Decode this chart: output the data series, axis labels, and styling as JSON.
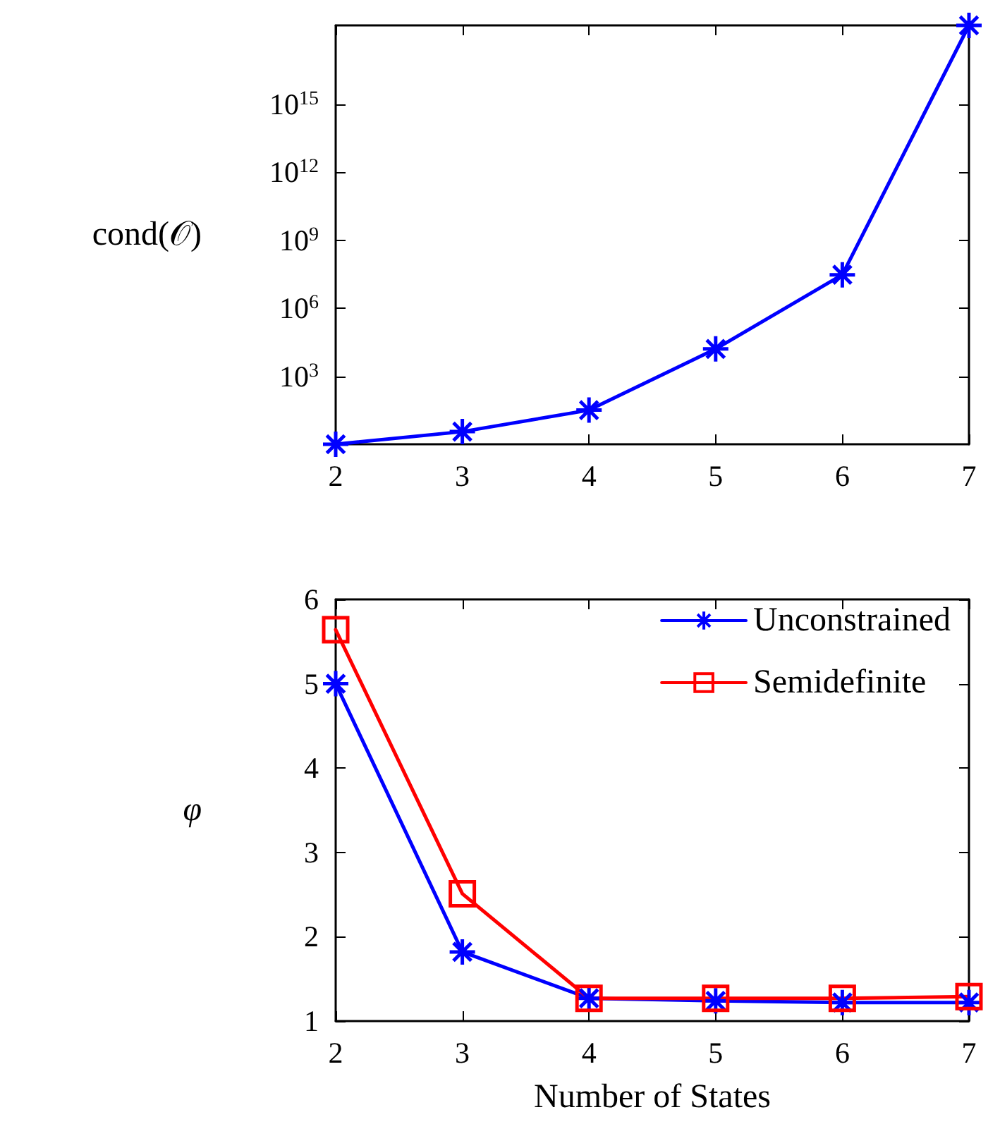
{
  "chart_data": [
    {
      "type": "line",
      "ylabel": "cond(𝒪)",
      "x": [
        2,
        3,
        4,
        5,
        6,
        7
      ],
      "xlim": [
        2,
        7
      ],
      "xticks": [
        2,
        3,
        4,
        5,
        6,
        7
      ],
      "log": "y",
      "ylim": [
        1,
        3e+18
      ],
      "yticks": [
        {
          "value": 1000,
          "label": "10$^{3}$"
        },
        {
          "value": 1000000,
          "label": "10$^{6}$"
        },
        {
          "value": 1000000000,
          "label": "10$^{9}$"
        },
        {
          "value": 1000000000000,
          "label": "10$^{12}$"
        },
        {
          "value": 1000000000000000,
          "label": "10$^{15}$"
        }
      ],
      "grid": false,
      "legend": false,
      "series": [
        {
          "color": "#0000ff",
          "marker": "cross",
          "values": [
            1,
            3.6,
            32,
            16000,
            30000000,
            3e+18
          ]
        }
      ]
    },
    {
      "type": "line",
      "xlabel": "Number of States",
      "ylabel": "φ",
      "x": [
        2,
        3,
        4,
        5,
        6,
        7
      ],
      "xlim": [
        2,
        7
      ],
      "xticks": [
        2,
        3,
        4,
        5,
        6,
        7
      ],
      "ylim": [
        1,
        6
      ],
      "yticks": [
        1,
        2,
        3,
        4,
        5,
        6
      ],
      "grid": false,
      "legend": "top right",
      "series": [
        {
          "name": "Unconstrained",
          "color": "#0000ff",
          "marker": "cross",
          "values": [
            5.0,
            1.82,
            1.27,
            1.24,
            1.22,
            1.22
          ]
        },
        {
          "name": "Semidefinite",
          "color": "#ff0000",
          "marker": "square",
          "values": [
            5.64,
            2.51,
            1.27,
            1.27,
            1.27,
            1.29
          ]
        }
      ]
    }
  ]
}
